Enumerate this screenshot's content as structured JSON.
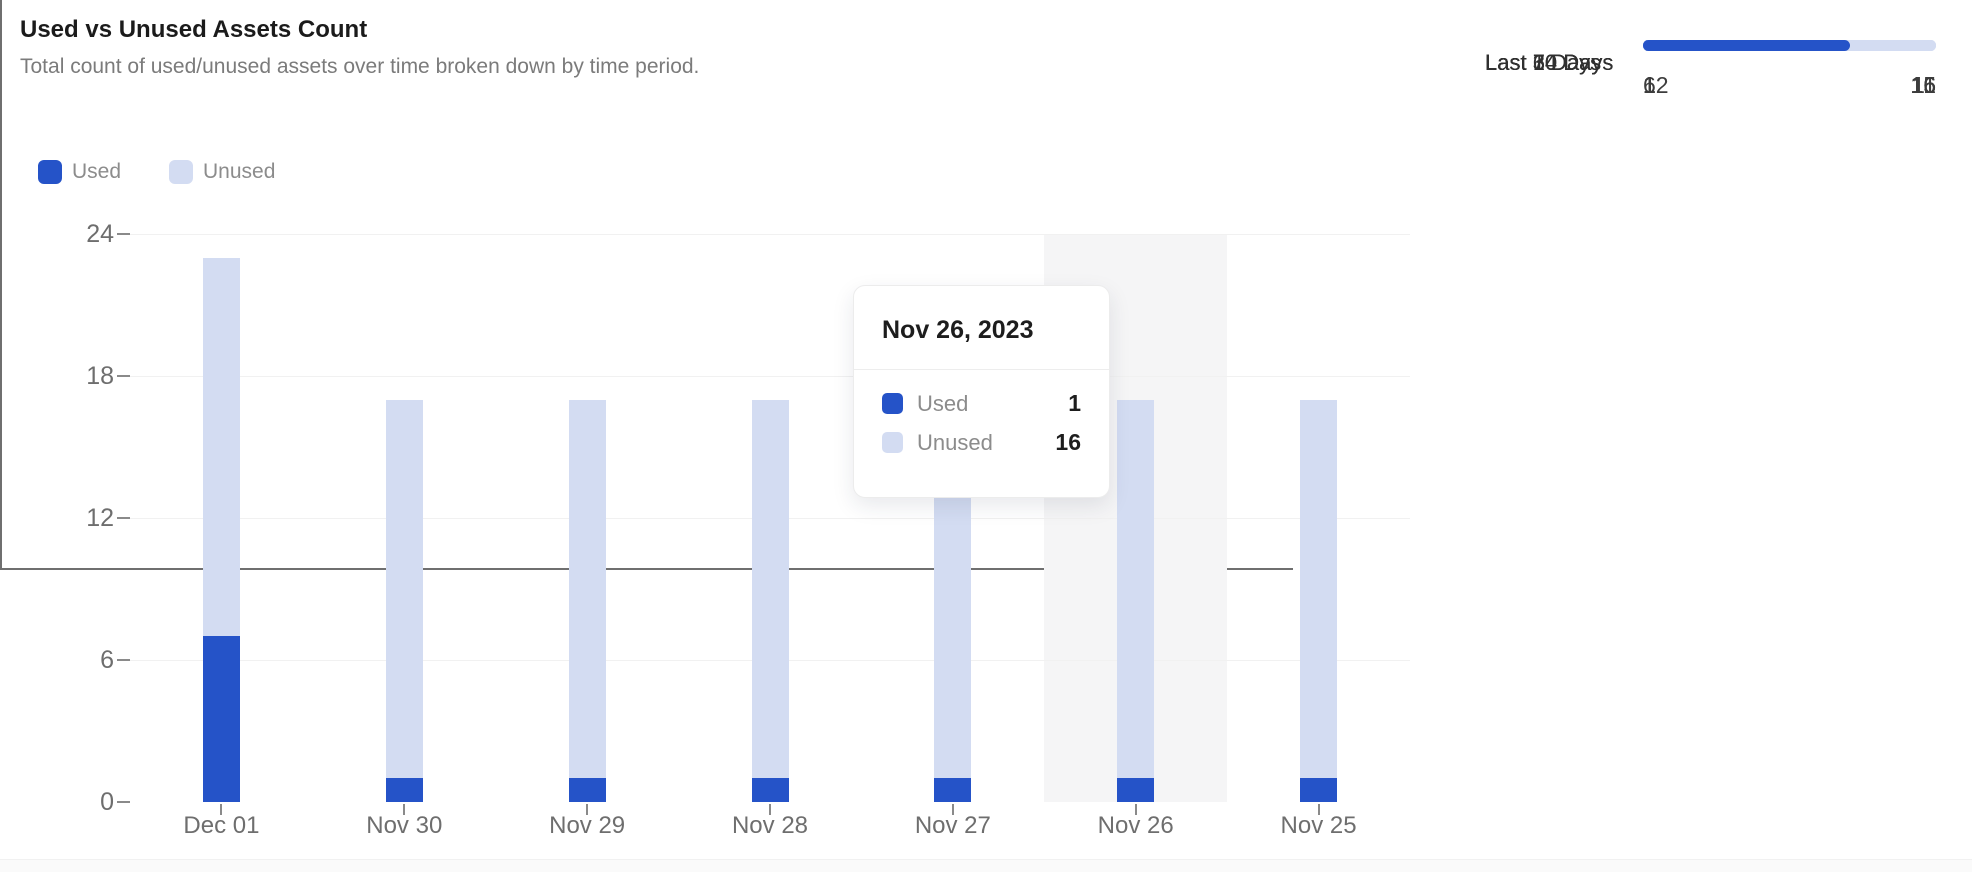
{
  "header": {
    "title": "Used vs Unused Assets Count",
    "subtitle": "Total count of used/unused assets over time broken down by time period."
  },
  "colors": {
    "used": "#2553c8",
    "unused": "#d3dcf2",
    "highlight_band": "#f5f5f6",
    "axis_line": "#6f6f6f",
    "grid_line": "#f1f1f1",
    "axis_text": "#6e6e6e"
  },
  "legend": {
    "items": [
      {
        "label": "Used",
        "color": "#2553c8"
      },
      {
        "label": "Unused",
        "color": "#d3dcf2"
      }
    ]
  },
  "chart_data": {
    "type": "bar",
    "stacked": true,
    "title": "Used vs Unused Assets Count",
    "xlabel": "",
    "ylabel": "",
    "categories": [
      "Dec 01",
      "Nov 30",
      "Nov 29",
      "Nov 28",
      "Nov 27",
      "Nov 26",
      "Nov 25"
    ],
    "series": [
      {
        "name": "Used",
        "color": "#2553c8",
        "values": [
          7,
          1,
          1,
          1,
          1,
          1,
          1
        ]
      },
      {
        "name": "Unused",
        "color": "#d3dcf2",
        "values": [
          16,
          16,
          16,
          16,
          16,
          16,
          16
        ]
      }
    ],
    "ylim": [
      0,
      24
    ],
    "y_ticks": [
      0,
      6,
      12,
      18,
      24
    ],
    "grid": true,
    "legend_position": "top-left",
    "highlighted_category": "Nov 26"
  },
  "tooltip": {
    "title": "Nov 26, 2023",
    "rows": [
      {
        "label": "Used",
        "value": "1",
        "color": "#2553c8"
      },
      {
        "label": "Unused",
        "value": "16",
        "color": "#d3dcf2"
      }
    ]
  },
  "side_panel": {
    "rows": [
      {
        "label": "Last 3 Days",
        "used": 1,
        "unused": 16
      },
      {
        "label": "Last 7 Days",
        "used": 1,
        "unused": 16
      },
      {
        "label": "Last 14 Days",
        "used": 1,
        "unused": 16
      },
      {
        "label": "Last 30 Days",
        "used": 6,
        "unused": 11
      },
      {
        "label": "Last 60 Days",
        "used": 12,
        "unused": 5
      }
    ]
  }
}
